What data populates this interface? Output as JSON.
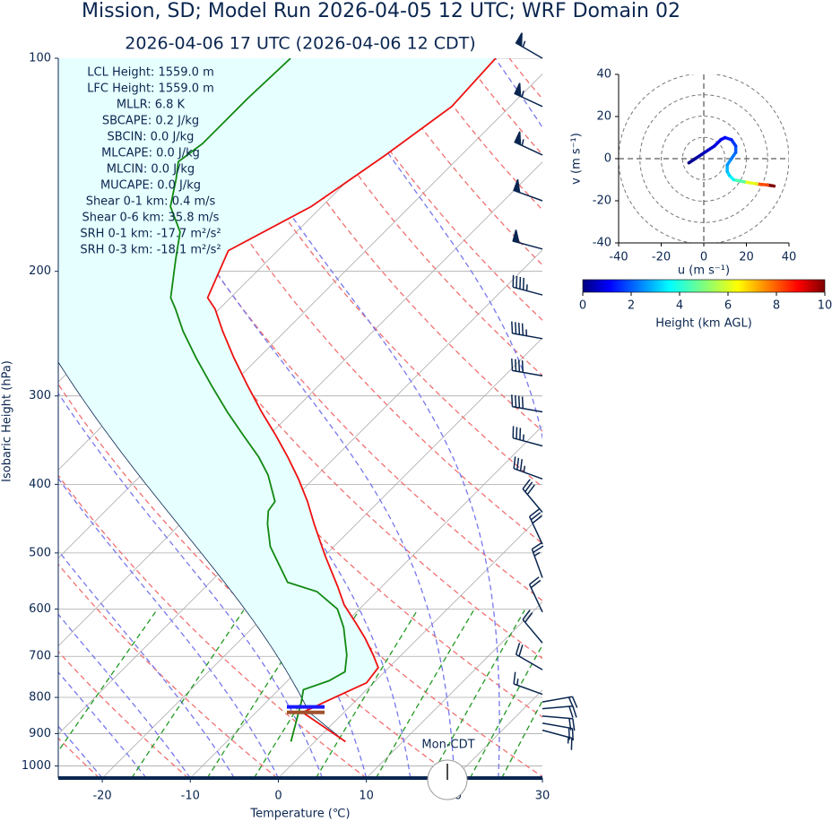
{
  "title": "Mission, SD; Model Run 2026-04-05 12 UTC; WRF Domain 02",
  "chart_data": [
    {
      "type": "skewt",
      "subtitle": "2026-04-06 17 UTC  (2026-04-06 12 CDT)",
      "x_label": "Temperature (℃)",
      "y_label": "Isobaric Height (hPa)",
      "xlim": [
        -25,
        30
      ],
      "xticks": [
        -20,
        -10,
        0,
        10,
        20,
        30
      ],
      "ylim": [
        1040,
        100
      ],
      "yticks": [
        100,
        200,
        300,
        400,
        500,
        600,
        700,
        800,
        900,
        1000
      ],
      "log_y": true,
      "grid": true,
      "series": [
        {
          "name": "Temperature",
          "color": "#ee1111",
          "pressure": [
            924,
            840,
            799,
            763,
            726,
            697,
            659,
            627,
            592,
            558,
            504,
            455,
            423,
            393,
            366,
            340,
            316,
            290,
            265,
            243,
            226,
            218,
            187,
            162,
            137,
            117,
            100
          ],
          "values": [
            3.5,
            -4.7,
            -2.7,
            -0.8,
            -1.2,
            -3.2,
            -6.1,
            -8.9,
            -12.2,
            -15.0,
            -20.0,
            -24.8,
            -28.1,
            -31.7,
            -35.4,
            -39.4,
            -43.5,
            -48.1,
            -52.8,
            -57.1,
            -60.5,
            -62.6,
            -65.6,
            -61.2,
            -58.6,
            -56.6,
            -57.1
          ]
        },
        {
          "name": "Dewpoint",
          "color": "#118811",
          "pressure": [
            924,
            813,
            780,
            758,
            736,
            697,
            637,
            600,
            567,
            550,
            490,
            455,
            436,
            423,
            388,
            366,
            340,
            316,
            290,
            265,
            243,
            226,
            218,
            193,
            176,
            162,
            148,
            140,
            132,
            114,
            100
          ],
          "values": [
            -2.7,
            -6.0,
            -7.2,
            -5.3,
            -4.5,
            -6.2,
            -9.7,
            -12.5,
            -16.8,
            -21.2,
            -27.2,
            -30.1,
            -31.5,
            -31.8,
            -35.6,
            -38.7,
            -43.1,
            -47.4,
            -52.2,
            -57.1,
            -61.6,
            -65.0,
            -66.8,
            -70.5,
            -73.2,
            -77.2,
            -79.7,
            -81.4,
            -80.7,
            -80.7,
            -80.4
          ]
        }
      ],
      "level_markers": [
        {
          "color": "#1a1aff",
          "pressure": 825
        },
        {
          "color": "#a0522d",
          "pressure": 840
        }
      ],
      "wind": {
        "color": "#0a2650",
        "pressure": [
          100,
          117,
          137,
          159,
          186,
          216,
          249,
          281,
          316,
          353,
          393,
          438,
          486,
          542,
          606,
          670,
          731,
          792,
          812,
          830,
          850,
          870,
          890
        ],
        "direction": [
          300,
          295,
          295,
          290,
          285,
          285,
          280,
          280,
          280,
          285,
          290,
          320,
          335,
          340,
          335,
          320,
          300,
          290,
          80,
          85,
          95,
          100,
          105
        ],
        "speed": [
          55,
          55,
          55,
          50,
          50,
          45,
          45,
          40,
          40,
          35,
          35,
          30,
          30,
          25,
          20,
          20,
          20,
          15,
          20,
          20,
          20,
          20,
          15
        ]
      },
      "parameters": [
        "LCL Height: 1559.0 m",
        "LFC Height: 1559.0 m",
        "MLLR: 6.8 K",
        "SBCAPE: 0.2 J/kg",
        "SBCIN: 0.0 J/kg",
        "MLCAPE: 0.0 J/kg",
        "MLCIN: 0.0 J/kg",
        "MUCAPE: 0.0 J/kg",
        "Shear 0-1 km: 0.4 m/s",
        "Shear 0-6 km: 35.8 m/s",
        "SRH 0-1 km: -17.7 m²/s²",
        "SRH 0-3 km: -18.1 m²/s²"
      ],
      "clock_label": "Mon-CDT"
    },
    {
      "type": "hodograph",
      "x_label": "u (m s⁻¹)",
      "y_label": "v (m s⁻¹)",
      "xlim": [
        -40,
        40
      ],
      "xticks": [
        -40,
        -20,
        0,
        20,
        40
      ],
      "ylim": [
        -40,
        40
      ],
      "yticks": [
        -40,
        -20,
        0,
        20,
        40
      ],
      "rings": [
        10,
        20,
        30,
        40
      ],
      "u": [
        -7,
        -4,
        -1,
        2,
        5,
        8,
        10,
        13,
        15,
        15,
        13,
        11,
        11,
        12,
        14,
        19,
        25,
        30,
        33
      ],
      "v": [
        -2,
        0,
        2,
        4,
        6,
        9,
        10,
        9,
        6,
        3,
        0,
        -3,
        -6,
        -8,
        -10,
        -11,
        -12,
        -12.5,
        -13
      ],
      "height": [
        0,
        0.2,
        0.4,
        0.6,
        0.8,
        1,
        1.2,
        1.5,
        1.8,
        2.1,
        2.4,
        2.7,
        3,
        3.3,
        3.7,
        4.5,
        6,
        8,
        10
      ],
      "colorbar": {
        "label": "Height (km AGL)",
        "lim": [
          0,
          10
        ],
        "ticks": [
          0,
          2,
          4,
          6,
          8,
          10
        ]
      }
    }
  ]
}
